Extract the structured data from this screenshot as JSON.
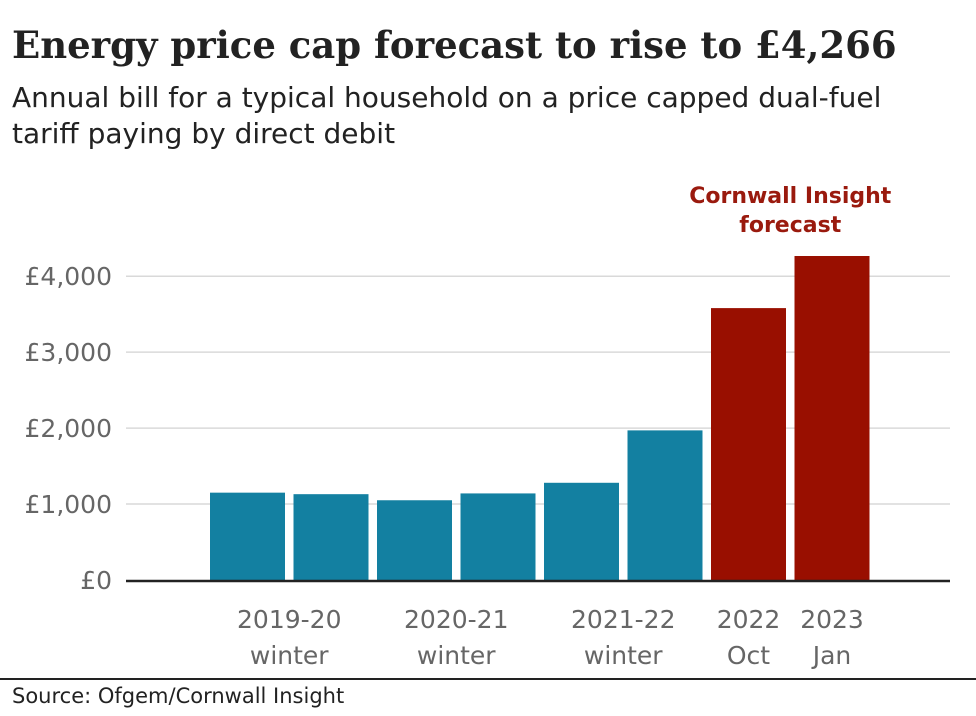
{
  "chart_data": {
    "type": "bar",
    "title": "Energy price cap forecast to rise to £4,266",
    "subtitle": "Annual bill for a typical household on a price capped dual-fuel tariff paying by direct debit",
    "source": "Source: Ofgem/Cornwall Insight",
    "ylim": [
      0,
      4300
    ],
    "yticks": [
      0,
      1000,
      2000,
      3000,
      4000
    ],
    "ytick_labels": [
      "£0",
      "£1,000",
      "£2,000",
      "£3,000",
      "£4,000"
    ],
    "grid": true,
    "bars": [
      {
        "value": 1150,
        "kind": "actual"
      },
      {
        "value": 1130,
        "kind": "actual"
      },
      {
        "value": 1050,
        "kind": "actual"
      },
      {
        "value": 1140,
        "kind": "actual"
      },
      {
        "value": 1280,
        "kind": "actual"
      },
      {
        "value": 1970,
        "kind": "actual"
      },
      {
        "value": 3580,
        "kind": "forecast"
      },
      {
        "value": 4266,
        "kind": "forecast"
      }
    ],
    "category_labels": [
      {
        "lines": [
          "2019-20",
          "winter"
        ],
        "bars": [
          0,
          1
        ]
      },
      {
        "lines": [
          "2020-21",
          "winter"
        ],
        "bars": [
          2,
          3
        ]
      },
      {
        "lines": [
          "2021-22",
          "winter"
        ],
        "bars": [
          4,
          5
        ]
      },
      {
        "lines": [
          "2022",
          "Oct"
        ],
        "bars": [
          6,
          6
        ]
      },
      {
        "lines": [
          "2023",
          "Jan"
        ],
        "bars": [
          7,
          7
        ]
      }
    ],
    "annotation": {
      "lines": [
        "Cornwall Insight",
        "forecast"
      ]
    },
    "colors": {
      "actual": "#1380a1",
      "forecast": "#990f00",
      "annotation": "#9a1a0e",
      "grid": "#d9d9d9",
      "axis": "#222222"
    }
  }
}
